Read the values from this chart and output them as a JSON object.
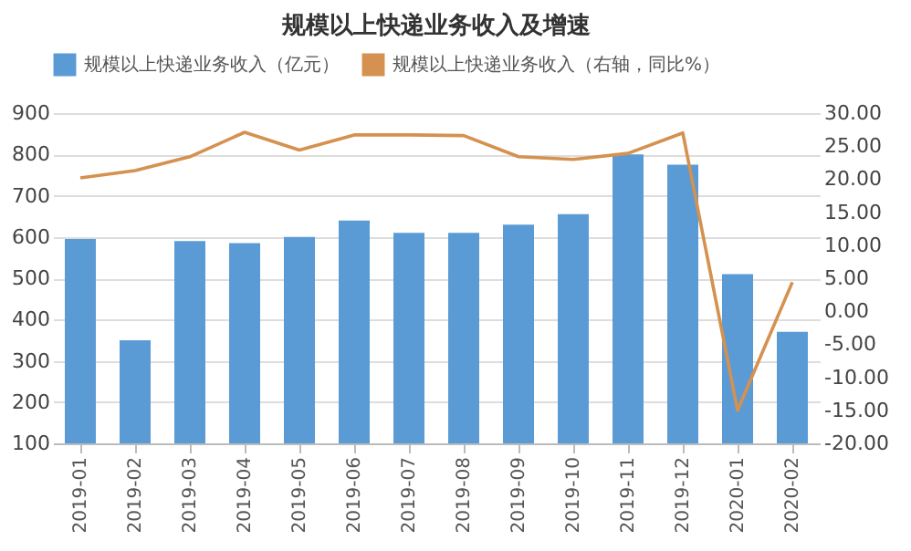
{
  "chart_data": {
    "type": "bar",
    "title": "规模以上快递业务收入及增速",
    "categories": [
      "2019-01",
      "2019-02",
      "2019-03",
      "2019-04",
      "2019-05",
      "2019-06",
      "2019-07",
      "2019-08",
      "2019-09",
      "2019-10",
      "2019-11",
      "2019-12",
      "2020-01",
      "2020-02"
    ],
    "series": [
      {
        "name": "规模以上快递业务收入（亿元）",
        "color": "#5b9bd5",
        "values": [
          595,
          350,
          590,
          585,
          600,
          640,
          610,
          610,
          630,
          655,
          800,
          775,
          510,
          370
        ]
      },
      {
        "name": "规模以上快递业务收入（右轴，同比%）",
        "type": "line",
        "axis": "y2",
        "color": "#d4914f",
        "values": [
          20.2,
          21.3,
          23.4,
          27.1,
          24.4,
          26.7,
          26.7,
          26.6,
          23.4,
          23,
          23.9,
          27,
          -15,
          4.4
        ]
      }
    ],
    "ylim": [
      100,
      900
    ],
    "yticks": [
      100,
      200,
      300,
      400,
      500,
      600,
      700,
      800,
      900
    ],
    "y2lim": [
      -20,
      30
    ],
    "y2ticks": [
      {
        "value": -20,
        "label": "-20.00"
      },
      {
        "value": -15,
        "label": "-15.00"
      },
      {
        "value": -10,
        "label": "-10.00"
      },
      {
        "value": -5,
        "label": "-5.00"
      },
      {
        "value": 0,
        "label": "0.00"
      },
      {
        "value": 5,
        "label": "5.00"
      },
      {
        "value": 10,
        "label": "10.00"
      },
      {
        "value": 15,
        "label": "15.00"
      },
      {
        "value": 20,
        "label": "20.00"
      },
      {
        "value": 25,
        "label": "25.00"
      },
      {
        "value": 30,
        "label": "30.00"
      }
    ],
    "grid": "y",
    "legend": "top",
    "marker": "none",
    "line_style": "solid"
  }
}
